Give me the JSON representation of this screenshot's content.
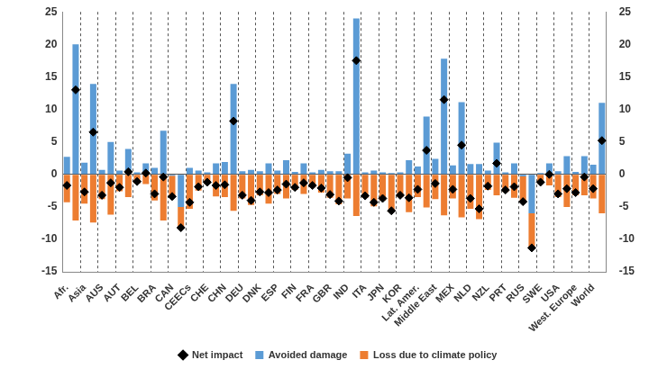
{
  "chart_data": {
    "type": "bar",
    "categories": [
      "Afr.",
      null,
      "Asia",
      null,
      "AUS",
      null,
      "AUT",
      null,
      "BEL",
      null,
      "BRA",
      null,
      "CAN",
      null,
      "CEECs",
      null,
      "CHE",
      null,
      "CHN",
      null,
      "DEU",
      null,
      "DNK",
      null,
      "ESP",
      null,
      "FIN",
      null,
      "FRA",
      null,
      "GBR",
      null,
      "IND",
      null,
      "ITA",
      null,
      "JPN",
      null,
      "KOR",
      null,
      "Lat. Amer.",
      null,
      "Middle East",
      null,
      "MEX",
      null,
      "NLD",
      null,
      "NZL",
      null,
      "PRT",
      null,
      "RUS",
      null,
      "SWE",
      null,
      "USA",
      null,
      "West. Europe",
      null,
      "World",
      null
    ],
    "series": [
      {
        "name": "Avoided damage",
        "color": "#5b9bd5",
        "values": [
          2.7,
          20,
          1.8,
          13.9,
          0.7,
          5,
          0.6,
          3.9,
          0.3,
          1.7,
          1.0,
          6.7,
          -0.2,
          -5.0,
          1.0,
          0.6,
          0.3,
          1.7,
          1.9,
          13.9,
          0.5,
          0.7,
          0.5,
          1.7,
          0.6,
          2.2,
          0.4,
          1.7,
          0.3,
          0.7,
          0.5,
          0.5,
          3.2,
          24,
          0.3,
          0.6,
          0.3,
          0.2,
          0.3,
          2.2,
          1.2,
          8.9,
          2.4,
          17.8,
          1.4,
          11.1,
          1.6,
          1.6,
          0.6,
          4.9,
          0.3,
          1.7,
          -0.3,
          -6.0,
          0.2,
          1.7,
          0.5,
          2.8,
          0.4,
          2.8,
          1.5,
          11
        ]
      },
      {
        "name": "Loss due to climate policy",
        "color": "#ed7d31",
        "values": [
          -4.3,
          -7.1,
          -4.5,
          -7.4,
          -3.8,
          -6.2,
          -2.6,
          -3.5,
          -1.4,
          -1.5,
          -4.0,
          -7.1,
          -3.2,
          -3.2,
          -5.3,
          -2.5,
          -1.5,
          -3.4,
          -3.5,
          -5.6,
          -3.7,
          -4.7,
          -3.2,
          -4.5,
          -3.0,
          -3.7,
          -2.4,
          -3.0,
          -2.0,
          -2.8,
          -3.6,
          -4.6,
          -3.7,
          -6.4,
          -3.6,
          -4.9,
          -4.0,
          -5.8,
          -3.5,
          -5.8,
          -3.5,
          -5.1,
          -3.8,
          -6.3,
          -3.7,
          -6.6,
          -5.3,
          -6.9,
          -2.4,
          -3.2,
          -2.7,
          -3.6,
          -3.9,
          -5.3,
          -1.4,
          -1.7,
          -3.5,
          -5.0,
          -3.2,
          -3.2,
          -3.7,
          -6.0
        ]
      },
      {
        "name": "Net impact",
        "type": "scatter",
        "marker": "diamond",
        "color": "#000000",
        "values": [
          -1.7,
          13,
          -2.7,
          6.5,
          -3.2,
          -1.3,
          -2.0,
          0.4,
          -1.1,
          0.2,
          -3.0,
          -0.4,
          -3.4,
          -8.2,
          -4.3,
          -1.9,
          -1.2,
          -1.7,
          -1.6,
          8.2,
          -3.2,
          -4.0,
          -2.7,
          -2.8,
          -2.4,
          -1.5,
          -2.0,
          -1.3,
          -1.7,
          -2.1,
          -3.1,
          -4.1,
          -0.5,
          17.5,
          -3.3,
          -4.3,
          -3.7,
          -5.6,
          -3.2,
          -3.6,
          -2.3,
          3.7,
          -1.4,
          11.5,
          -2.3,
          4.5,
          -3.7,
          -5.3,
          -1.8,
          1.7,
          -2.4,
          -1.9,
          -4.2,
          -11.3,
          -1.2,
          0.0,
          -3.0,
          -2.2,
          -2.8,
          -0.4,
          -2.2,
          5.2
        ]
      }
    ],
    "ylim": [
      -15,
      25
    ],
    "yticks": [
      -15,
      -10,
      -5,
      0,
      5,
      10,
      15,
      20,
      25
    ],
    "y2lim": [
      -15,
      25
    ],
    "y2ticks": [
      -15,
      -10,
      -5,
      0,
      5,
      10,
      15,
      20,
      25
    ],
    "stacked": true,
    "grid": true,
    "legend": "bottom"
  }
}
